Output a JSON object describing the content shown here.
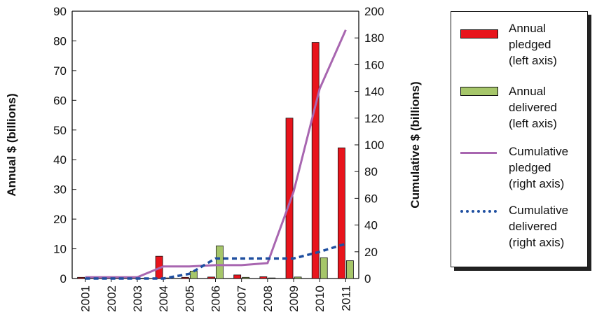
{
  "chart_data": {
    "type": "bar",
    "categories": [
      "2001",
      "2002",
      "2003",
      "2004",
      "2005",
      "2006",
      "2007",
      "2008",
      "2009",
      "2010",
      "2011"
    ],
    "left_axis": {
      "label": "Annual $ (billions)",
      "range": [
        0,
        90
      ],
      "ticks": [
        "0",
        "10",
        "20",
        "30",
        "40",
        "50",
        "60",
        "70",
        "80",
        "90"
      ]
    },
    "right_axis": {
      "label": "Cumulative $ (billions)",
      "range": [
        0,
        200
      ],
      "ticks": [
        "0",
        "20",
        "40",
        "60",
        "80",
        "100",
        "120",
        "140",
        "160",
        "180",
        "200"
      ]
    },
    "series": [
      {
        "name": "Annual pledged (left axis)",
        "kind": "bar",
        "axis": "left",
        "color": "#e8141c",
        "values": [
          0.4,
          0.2,
          0.2,
          7.5,
          0.4,
          0.5,
          1.2,
          0.6,
          54,
          79.5,
          44
        ]
      },
      {
        "name": "Annual delivered (left axis)",
        "kind": "bar",
        "axis": "left",
        "color": "#a6c66a",
        "values": [
          0.1,
          0.1,
          0.1,
          0.2,
          2.5,
          11,
          0.4,
          0.2,
          0.5,
          7,
          6
        ]
      },
      {
        "name": "Cumulative pledged (right axis)",
        "kind": "line",
        "axis": "right",
        "color": "#a866b0",
        "values": [
          1,
          1,
          1,
          9,
          9,
          10,
          10,
          11.5,
          65,
          142,
          186
        ]
      },
      {
        "name": "Cumulative delivered (right axis)",
        "kind": "dashed-line",
        "axis": "right",
        "color": "#1f4fa0",
        "values": [
          0,
          0,
          0,
          0,
          3.5,
          15,
          15,
          15,
          15,
          20,
          26
        ]
      }
    ],
    "legend": {
      "placement": "right",
      "entries": [
        {
          "lines": [
            "Annual",
            "pledged",
            "(left axis)"
          ]
        },
        {
          "lines": [
            "Annual",
            "delivered",
            "(left axis)"
          ]
        },
        {
          "lines": [
            "Cumulative",
            "pledged",
            "(right axis)"
          ]
        },
        {
          "lines": [
            "Cumulative",
            "delivered",
            "(right axis)"
          ]
        }
      ]
    },
    "grid": false
  }
}
